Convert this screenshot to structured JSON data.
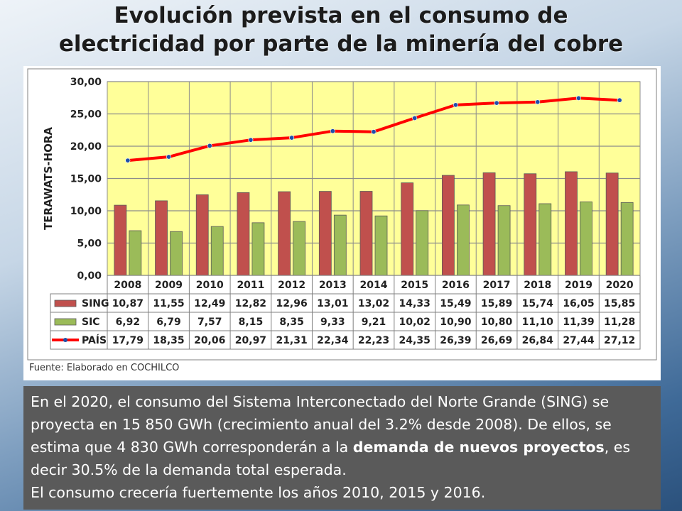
{
  "slide": {
    "title_line1": "Evolución prevista en el consumo de",
    "title_line2": "electricidad por parte de la minería del cobre",
    "source": "Fuente: Elaborado en COCHILCO",
    "text": {
      "p1_a": "En el 2020, el consumo del Sistema Interconectado del Norte Grande (SING) se proyecta en 15 850 GWh (crecimiento anual del 3.2% desde 2008). De ellos, se estima que 4 830 GWh corresponderán a la ",
      "p1_bold": "demanda de nuevos proyectos",
      "p1_b": ", es decir 30.5% de la demanda total esperada.",
      "p2": "El consumo crecería fuertemente los años 2010, 2015 y 2016."
    }
  },
  "chart_data": {
    "type": "bar",
    "ylabel": "TERAWATS-HORA",
    "ylim": [
      0,
      30
    ],
    "yticks": [
      "0,00",
      "5,00",
      "10,00",
      "15,00",
      "20,00",
      "25,00",
      "30,00"
    ],
    "categories": [
      "2008",
      "2009",
      "2010",
      "2011",
      "2012",
      "2013",
      "2014",
      "2015",
      "2016",
      "2017",
      "2018",
      "2019",
      "2020"
    ],
    "series": [
      {
        "name": "SING",
        "kind": "bar",
        "color": "#c0504d",
        "values": [
          10.87,
          11.55,
          12.49,
          12.82,
          12.96,
          13.01,
          13.02,
          14.33,
          15.49,
          15.89,
          15.74,
          16.05,
          15.85
        ],
        "labels": [
          "10,87",
          "11,55",
          "12,49",
          "12,82",
          "12,96",
          "13,01",
          "13,02",
          "14,33",
          "15,49",
          "15,89",
          "15,74",
          "16,05",
          "15,85"
        ]
      },
      {
        "name": "SIC",
        "kind": "bar",
        "color": "#9bbb59",
        "values": [
          6.92,
          6.79,
          7.57,
          8.15,
          8.35,
          9.33,
          9.21,
          10.02,
          10.9,
          10.8,
          11.1,
          11.39,
          11.28
        ],
        "labels": [
          "6,92",
          "6,79",
          "7,57",
          "8,15",
          "8,35",
          "9,33",
          "9,21",
          "10,02",
          "10,90",
          "10,80",
          "11,10",
          "11,39",
          "11,28"
        ]
      },
      {
        "name": "PAÍS",
        "kind": "line",
        "color": "#ff0000",
        "values": [
          17.79,
          18.35,
          20.06,
          20.97,
          21.31,
          22.34,
          22.23,
          24.35,
          26.39,
          26.69,
          26.84,
          27.44,
          27.12
        ],
        "labels": [
          "17,79",
          "18,35",
          "20,06",
          "20,97",
          "21,31",
          "22,34",
          "22,23",
          "24,35",
          "26,39",
          "26,69",
          "26,84",
          "27,44",
          "27,12"
        ]
      }
    ],
    "grid": true,
    "plot_background": "#ffff99",
    "legend": "data-table"
  }
}
